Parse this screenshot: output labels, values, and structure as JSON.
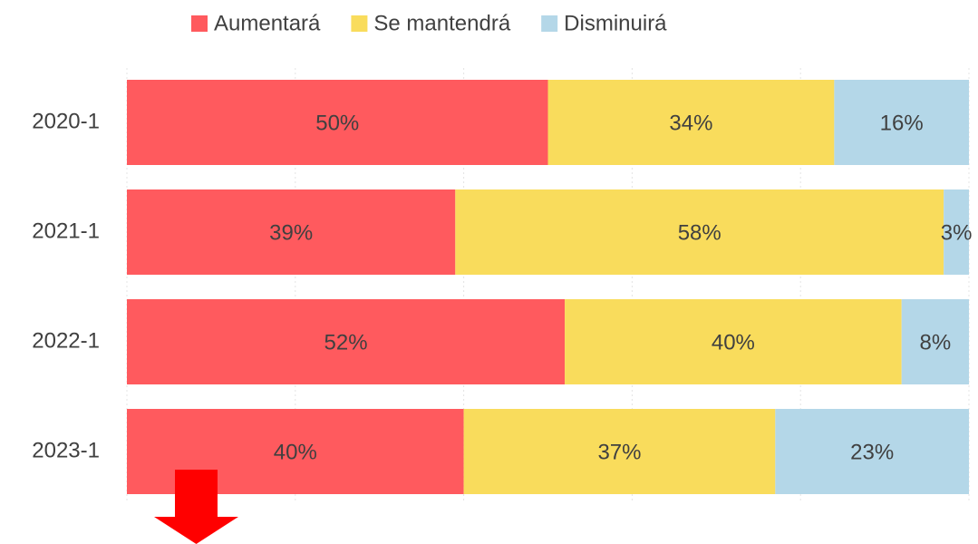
{
  "chart_data": {
    "type": "stacked_bar_horizontal",
    "categories": [
      "2020-1",
      "2021-1",
      "2022-1",
      "2023-1"
    ],
    "series": [
      {
        "name": "Aumentará",
        "color": "#ff5a5e",
        "values": [
          50,
          39,
          52,
          40
        ],
        "value_labels": [
          "50%",
          "39%",
          "52%",
          "40%"
        ]
      },
      {
        "name": "Se mantendrá",
        "color": "#f9dc5c",
        "values": [
          34,
          58,
          40,
          37
        ],
        "value_labels": [
          "34%",
          "58%",
          "40%",
          "37%"
        ]
      },
      {
        "name": "Disminuirá",
        "color": "#b4d7e8",
        "values": [
          16,
          3,
          8,
          23
        ],
        "value_labels": [
          "16%",
          "3%",
          "8%",
          "23%"
        ]
      }
    ],
    "xlim": [
      0,
      100
    ],
    "xticks": [
      0,
      20,
      40,
      60,
      80,
      100
    ],
    "grid": true,
    "legend": "top"
  }
}
